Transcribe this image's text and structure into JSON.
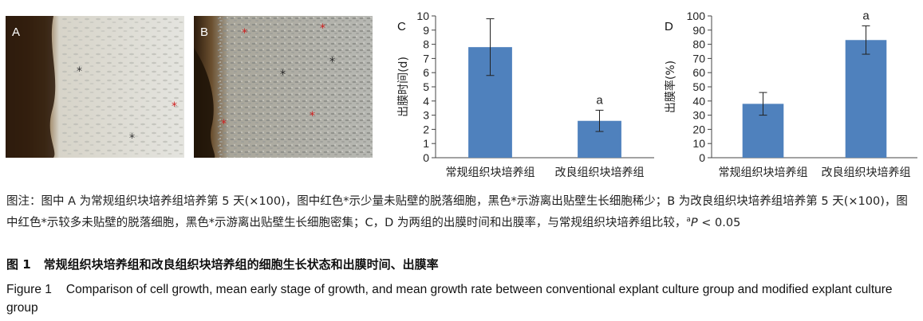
{
  "panels": {
    "a": {
      "letter": "A"
    },
    "b": {
      "letter": "B"
    }
  },
  "charts_text": {
    "c_letter": "C",
    "d_letter": "D"
  },
  "chart_data": [
    {
      "id": "C",
      "type": "bar",
      "categories": [
        "常规组织块培养组",
        "改良组织块培养组"
      ],
      "values": [
        7.8,
        2.6
      ],
      "errors": [
        2.0,
        0.75
      ],
      "significance": [
        "",
        "a"
      ],
      "ylabel": "出膜时间(d)",
      "ylim": [
        0,
        10
      ],
      "yticks": [
        0,
        1,
        2,
        3,
        4,
        5,
        6,
        7,
        8,
        9,
        10
      ],
      "bar_color": "#4f81bd"
    },
    {
      "id": "D",
      "type": "bar",
      "categories": [
        "常规组织块培养组",
        "改良组织块培养组"
      ],
      "values": [
        38,
        83
      ],
      "errors": [
        8,
        10
      ],
      "significance": [
        "",
        "a"
      ],
      "ylabel": "出膜率(%)",
      "ylim": [
        0,
        100
      ],
      "yticks": [
        0,
        10,
        20,
        30,
        40,
        50,
        60,
        70,
        80,
        90,
        100
      ],
      "bar_color": "#4f81bd"
    }
  ],
  "caption": {
    "zh_note_part1": "图注：图中 A 为常规组织块培养组培养第 5 天(×100)，图中红色*示少量未贴壁的脱落细胞，黑色*示游离出贴壁生长细胞稀少；B 为改良组织块培养组培养第 5 天(×100)，图中红色*示较多未贴壁的脱落细胞，黑色*示游离出贴壁生长细胞密集；C，D 为两组的出膜时间和出膜率，与常规组织块培养组比较，",
    "zh_note_sup": "a",
    "zh_note_p": "P",
    "zh_note_tail": " < 0.05",
    "zh_fig_label": "图 1",
    "zh_fig_title": "常规组织块培养组和改良组织块培养组的细胞生长状态和出膜时间、出膜率",
    "en_fig_label": "Figure 1",
    "en_fig_title": "Comparison of cell growth, mean early stage of growth, and mean growth rate between conventional explant culture group and modified explant culture group"
  }
}
